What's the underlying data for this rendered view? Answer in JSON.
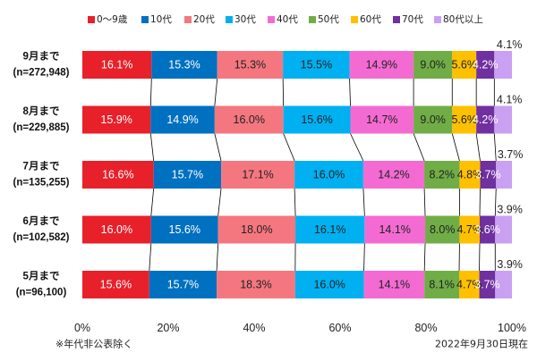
{
  "chart_data": {
    "type": "bar",
    "orientation": "horizontal",
    "stacked": "percent",
    "unit": "%",
    "categories": [
      "9月まで",
      "8月まで",
      "7月まで",
      "6月まで",
      "5月まで"
    ],
    "sample_sizes": [
      "(n=272,948)",
      "(n=229,885)",
      "(n=135,255)",
      "(n=102,582)",
      "(n=96,100)"
    ],
    "series": [
      {
        "name": "0〜9歳",
        "color": "#e8202a",
        "label_color": "#ffffff",
        "values": [
          16.1,
          15.9,
          16.6,
          16.0,
          15.6
        ]
      },
      {
        "name": "10代",
        "color": "#0070c0",
        "label_color": "#ffffff",
        "values": [
          15.3,
          14.9,
          15.7,
          15.6,
          15.7
        ]
      },
      {
        "name": "20代",
        "color": "#f4777f",
        "label_color": "#222222",
        "values": [
          15.3,
          16.0,
          17.1,
          18.0,
          18.3
        ]
      },
      {
        "name": "30代",
        "color": "#00b0f0",
        "label_color": "#222222",
        "values": [
          15.5,
          15.6,
          16.0,
          16.1,
          16.0
        ]
      },
      {
        "name": "40代",
        "color": "#f36bd2",
        "label_color": "#222222",
        "values": [
          14.9,
          14.7,
          14.2,
          14.1,
          14.1
        ]
      },
      {
        "name": "50代",
        "color": "#70ad47",
        "label_color": "#222222",
        "values": [
          9.0,
          9.0,
          8.2,
          8.0,
          8.1
        ]
      },
      {
        "name": "60代",
        "color": "#ffc000",
        "label_color": "#222222",
        "values": [
          5.6,
          5.6,
          4.8,
          4.7,
          4.7
        ]
      },
      {
        "name": "70代",
        "color": "#7030a0",
        "label_color": "#ffffff",
        "values": [
          4.2,
          4.2,
          3.7,
          3.6,
          3.7
        ]
      },
      {
        "name": "80代以上",
        "color": "#c9a0f2",
        "label_color": "#222222",
        "values": [
          4.1,
          4.1,
          3.7,
          3.9,
          3.9
        ]
      }
    ],
    "x_ticks": [
      0,
      20,
      40,
      60,
      80,
      100
    ],
    "xlim": [
      0,
      100
    ],
    "legend": "top",
    "grid": false
  },
  "notes": {
    "footnote": "※年代非公表除く",
    "as_of": "2022年9月30日現在"
  }
}
